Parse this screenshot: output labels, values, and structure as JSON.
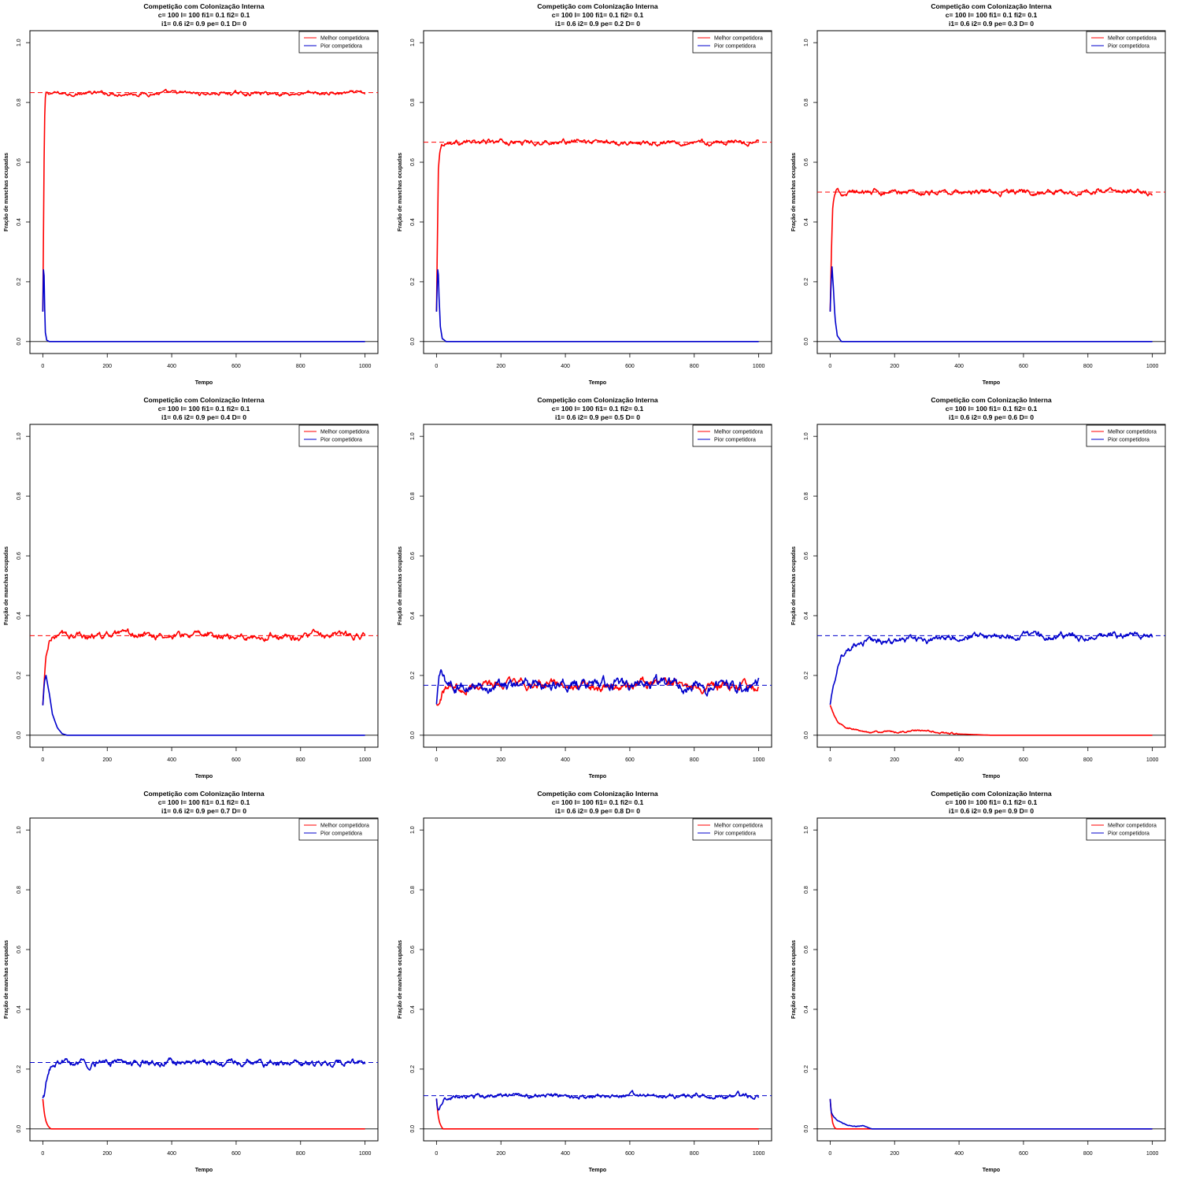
{
  "legend": {
    "better": "Melhor competidora",
    "worse": "Pior competidora"
  },
  "colors": {
    "better": "#ff0000",
    "worse": "#0000cc"
  },
  "chart_data": [
    {
      "type": "line",
      "title": [
        "Competição com Colonização Interna",
        "c= 100  l= 100  fi1= 0.1  fi2= 0.1",
        "i1= 0.6  i2= 0.9  pe= 0.1  D= 0"
      ],
      "xlabel": "Tempo",
      "ylabel": "Fração de manchas ocupadas",
      "xlim": [
        0,
        1000
      ],
      "ylim": [
        0,
        1
      ],
      "x_ticks": [
        0,
        200,
        400,
        600,
        800,
        1000
      ],
      "y_ticks": [
        0.0,
        0.2,
        0.4,
        0.6,
        0.8,
        1.0
      ],
      "legend_position": "top-right",
      "series": [
        {
          "name": "Melhor competidora",
          "color": "#ff0000",
          "x": [
            0,
            2,
            4,
            6,
            8,
            10,
            20,
            100,
            200,
            300,
            400,
            500,
            600,
            700,
            800,
            900,
            1000
          ],
          "y": [
            0.1,
            0.35,
            0.6,
            0.75,
            0.81,
            0.83,
            0.83,
            0.83,
            0.83,
            0.83,
            0.83,
            0.83,
            0.83,
            0.83,
            0.83,
            0.83,
            0.83
          ],
          "noise": 0.004,
          "equilibrium": 0.833
        },
        {
          "name": "Pior competidora",
          "color": "#0000cc",
          "x": [
            0,
            2,
            3,
            5,
            8,
            12,
            20,
            1000
          ],
          "y": [
            0.1,
            0.24,
            0.29,
            0.15,
            0.03,
            0.005,
            0.0,
            0.0
          ],
          "noise": 0,
          "equilibrium": null
        }
      ]
    },
    {
      "type": "line",
      "title": [
        "Competição com Colonização Interna",
        "c= 100  l= 100  fi1= 0.1  fi2= 0.1",
        "i1= 0.6  i2= 0.9  pe= 0.2  D= 0"
      ],
      "xlabel": "Tempo",
      "ylabel": "Fração de manchas ocupadas",
      "xlim": [
        0,
        1000
      ],
      "ylim": [
        0,
        1
      ],
      "x_ticks": [
        0,
        200,
        400,
        600,
        800,
        1000
      ],
      "y_ticks": [
        0.0,
        0.2,
        0.4,
        0.6,
        0.8,
        1.0
      ],
      "legend_position": "top-right",
      "series": [
        {
          "name": "Melhor competidora",
          "color": "#ff0000",
          "x": [
            0,
            3,
            6,
            10,
            15,
            25,
            100,
            200,
            300,
            400,
            500,
            600,
            700,
            800,
            900,
            1000
          ],
          "y": [
            0.1,
            0.35,
            0.58,
            0.64,
            0.66,
            0.667,
            0.667,
            0.667,
            0.667,
            0.667,
            0.667,
            0.667,
            0.667,
            0.667,
            0.667,
            0.667
          ],
          "noise": 0.005,
          "equilibrium": 0.667
        },
        {
          "name": "Pior competidora",
          "color": "#0000cc",
          "x": [
            0,
            3,
            5,
            8,
            12,
            18,
            30,
            1000
          ],
          "y": [
            0.1,
            0.22,
            0.26,
            0.15,
            0.05,
            0.01,
            0.0,
            0.0
          ],
          "noise": 0,
          "equilibrium": null
        }
      ]
    },
    {
      "type": "line",
      "title": [
        "Competição com Colonização Interna",
        "c= 100  l= 100  fi1= 0.1  fi2= 0.1",
        "i1= 0.6  i2= 0.9  pe= 0.3  D= 0"
      ],
      "xlabel": "Tempo",
      "ylabel": "Fração de manchas ocupadas",
      "xlim": [
        0,
        1000
      ],
      "ylim": [
        0,
        1
      ],
      "x_ticks": [
        0,
        200,
        400,
        600,
        800,
        1000
      ],
      "y_ticks": [
        0.0,
        0.2,
        0.4,
        0.6,
        0.8,
        1.0
      ],
      "legend_position": "top-right",
      "series": [
        {
          "name": "Melhor competidora",
          "color": "#ff0000",
          "x": [
            0,
            4,
            8,
            12,
            18,
            30,
            100,
            200,
            300,
            400,
            500,
            600,
            700,
            800,
            900,
            1000
          ],
          "y": [
            0.1,
            0.3,
            0.44,
            0.48,
            0.495,
            0.5,
            0.5,
            0.5,
            0.5,
            0.5,
            0.5,
            0.5,
            0.5,
            0.5,
            0.5,
            0.5
          ],
          "noise": 0.006,
          "equilibrium": 0.5
        },
        {
          "name": "Pior competidora",
          "color": "#0000cc",
          "x": [
            0,
            3,
            6,
            10,
            15,
            22,
            35,
            1000
          ],
          "y": [
            0.1,
            0.2,
            0.25,
            0.18,
            0.08,
            0.02,
            0.0,
            0.0
          ],
          "noise": 0,
          "equilibrium": null
        }
      ]
    },
    {
      "type": "line",
      "title": [
        "Competição com Colonização Interna",
        "c= 100  l= 100  fi1= 0.1  fi2= 0.1",
        "i1= 0.6  i2= 0.9  pe= 0.4  D= 0"
      ],
      "xlabel": "Tempo",
      "ylabel": "Fração de manchas ocupadas",
      "xlim": [
        0,
        1000
      ],
      "ylim": [
        0,
        1
      ],
      "x_ticks": [
        0,
        200,
        400,
        600,
        800,
        1000
      ],
      "y_ticks": [
        0.0,
        0.2,
        0.4,
        0.6,
        0.8,
        1.0
      ],
      "legend_position": "top-right",
      "series": [
        {
          "name": "Melhor competidora",
          "color": "#ff0000",
          "x": [
            0,
            5,
            10,
            20,
            30,
            50,
            100,
            200,
            300,
            400,
            500,
            600,
            700,
            800,
            900,
            1000
          ],
          "y": [
            0.1,
            0.19,
            0.26,
            0.31,
            0.325,
            0.333,
            0.333,
            0.333,
            0.333,
            0.333,
            0.333,
            0.333,
            0.333,
            0.333,
            0.333,
            0.333
          ],
          "noise": 0.007,
          "equilibrium": 0.333
        },
        {
          "name": "Pior competidora",
          "color": "#0000cc",
          "x": [
            0,
            5,
            10,
            20,
            30,
            45,
            60,
            75,
            1000
          ],
          "y": [
            0.1,
            0.18,
            0.2,
            0.14,
            0.07,
            0.025,
            0.005,
            0.0,
            0.0
          ],
          "noise": 0,
          "equilibrium": null
        }
      ]
    },
    {
      "type": "line",
      "title": [
        "Competição com Colonização Interna",
        "c= 100  l= 100  fi1= 0.1  fi2= 0.1",
        "i1= 0.6  i2= 0.9  pe= 0.5  D= 0"
      ],
      "xlabel": "Tempo",
      "ylabel": "Fração de manchas ocupadas",
      "xlim": [
        0,
        1000
      ],
      "ylim": [
        0,
        1
      ],
      "x_ticks": [
        0,
        200,
        400,
        600,
        800,
        1000
      ],
      "y_ticks": [
        0.0,
        0.2,
        0.4,
        0.6,
        0.8,
        1.0
      ],
      "legend_position": "top-right",
      "series": [
        {
          "name": "Melhor competidora",
          "color": "#ff0000",
          "x": [
            0,
            10,
            20,
            40,
            100,
            200,
            300,
            400,
            500,
            600,
            700,
            800,
            900,
            1000
          ],
          "y": [
            0.1,
            0.13,
            0.15,
            0.165,
            0.167,
            0.167,
            0.167,
            0.167,
            0.167,
            0.167,
            0.167,
            0.167,
            0.167,
            0.167
          ],
          "noise": 0.01,
          "equilibrium": null
        },
        {
          "name": "Pior competidora",
          "color": "#0000cc",
          "x": [
            0,
            8,
            15,
            25,
            40,
            100,
            200,
            300,
            400,
            500,
            600,
            700,
            800,
            900,
            1000
          ],
          "y": [
            0.1,
            0.18,
            0.21,
            0.18,
            0.165,
            0.167,
            0.167,
            0.167,
            0.167,
            0.167,
            0.167,
            0.167,
            0.167,
            0.167,
            0.167
          ],
          "noise": 0.012,
          "equilibrium": 0.167
        }
      ]
    },
    {
      "type": "line",
      "title": [
        "Competição com Colonização Interna",
        "c= 100  l= 100  fi1= 0.1  fi2= 0.1",
        "i1= 0.6  i2= 0.9  pe= 0.6  D= 0"
      ],
      "xlabel": "Tempo",
      "ylabel": "Fração de manchas ocupadas",
      "xlim": [
        0,
        1000
      ],
      "ylim": [
        0,
        1
      ],
      "x_ticks": [
        0,
        200,
        400,
        600,
        800,
        1000
      ],
      "y_ticks": [
        0.0,
        0.2,
        0.4,
        0.6,
        0.8,
        1.0
      ],
      "legend_position": "top-right",
      "series": [
        {
          "name": "Melhor competidora",
          "color": "#ff0000",
          "x": [
            0,
            10,
            25,
            50,
            100,
            200,
            280,
            350,
            400,
            450,
            500,
            1000
          ],
          "y": [
            0.1,
            0.07,
            0.04,
            0.025,
            0.012,
            0.01,
            0.015,
            0.008,
            0.004,
            0.002,
            0.0,
            0.0
          ],
          "noise": 0.002,
          "equilibrium": null
        },
        {
          "name": "Pior competidora",
          "color": "#0000cc",
          "x": [
            0,
            10,
            25,
            50,
            100,
            200,
            300,
            400,
            450,
            500,
            600,
            700,
            800,
            900,
            1000
          ],
          "y": [
            0.1,
            0.18,
            0.25,
            0.29,
            0.31,
            0.315,
            0.315,
            0.325,
            0.333,
            0.333,
            0.333,
            0.333,
            0.333,
            0.333,
            0.333
          ],
          "noise": 0.007,
          "equilibrium": 0.333
        }
      ]
    },
    {
      "type": "line",
      "title": [
        "Competição com Colonização Interna",
        "c= 100  l= 100  fi1= 0.1  fi2= 0.1",
        "i1= 0.6  i2= 0.9  pe= 0.7  D= 0"
      ],
      "xlabel": "Tempo",
      "ylabel": "Fração de manchas ocupadas",
      "xlim": [
        0,
        1000
      ],
      "ylim": [
        0,
        1
      ],
      "x_ticks": [
        0,
        200,
        400,
        600,
        800,
        1000
      ],
      "y_ticks": [
        0.0,
        0.2,
        0.4,
        0.6,
        0.8,
        1.0
      ],
      "legend_position": "top-right",
      "series": [
        {
          "name": "Melhor competidora",
          "color": "#ff0000",
          "x": [
            0,
            5,
            10,
            15,
            20,
            25,
            1000
          ],
          "y": [
            0.1,
            0.05,
            0.025,
            0.012,
            0.005,
            0.0,
            0.0
          ],
          "noise": 0,
          "equilibrium": null
        },
        {
          "name": "Pior competidora",
          "color": "#0000cc",
          "x": [
            0,
            5,
            10,
            20,
            30,
            45,
            100,
            200,
            300,
            400,
            500,
            600,
            700,
            800,
            900,
            1000
          ],
          "y": [
            0.1,
            0.11,
            0.15,
            0.19,
            0.21,
            0.22,
            0.222,
            0.222,
            0.222,
            0.222,
            0.222,
            0.222,
            0.222,
            0.222,
            0.222,
            0.222
          ],
          "noise": 0.007,
          "equilibrium": 0.222
        }
      ]
    },
    {
      "type": "line",
      "title": [
        "Competição com Colonização Interna",
        "c= 100  l= 100  fi1= 0.1  fi2= 0.1",
        "i1= 0.6  i2= 0.9  pe= 0.8  D= 0"
      ],
      "xlabel": "Tempo",
      "ylabel": "Fração de manchas ocupadas",
      "xlim": [
        0,
        1000
      ],
      "ylim": [
        0,
        1
      ],
      "x_ticks": [
        0,
        200,
        400,
        600,
        800,
        1000
      ],
      "y_ticks": [
        0.0,
        0.2,
        0.4,
        0.6,
        0.8,
        1.0
      ],
      "legend_position": "top-right",
      "series": [
        {
          "name": "Melhor competidora",
          "color": "#ff0000",
          "x": [
            0,
            5,
            10,
            15,
            20,
            1000
          ],
          "y": [
            0.1,
            0.045,
            0.02,
            0.008,
            0.0,
            0.0
          ],
          "noise": 0,
          "equilibrium": null
        },
        {
          "name": "Pior competidora",
          "color": "#0000cc",
          "x": [
            0,
            3,
            8,
            15,
            25,
            50,
            100,
            200,
            300,
            400,
            500,
            600,
            700,
            800,
            900,
            1000
          ],
          "y": [
            0.1,
            0.065,
            0.06,
            0.08,
            0.1,
            0.108,
            0.111,
            0.111,
            0.111,
            0.111,
            0.111,
            0.111,
            0.111,
            0.111,
            0.111,
            0.111
          ],
          "noise": 0.005,
          "equilibrium": 0.111
        }
      ]
    },
    {
      "type": "line",
      "title": [
        "Competição com Colonização Interna",
        "c= 100  l= 100  fi1= 0.1  fi2= 0.1",
        "i1= 0.6  i2= 0.9  pe= 0.9  D= 0"
      ],
      "xlabel": "Tempo",
      "ylabel": "Fração de manchas ocupadas",
      "xlim": [
        0,
        1000
      ],
      "ylim": [
        0,
        1
      ],
      "x_ticks": [
        0,
        200,
        400,
        600,
        800,
        1000
      ],
      "y_ticks": [
        0.0,
        0.2,
        0.4,
        0.6,
        0.8,
        1.0
      ],
      "legend_position": "top-right",
      "series": [
        {
          "name": "Melhor competidora",
          "color": "#ff0000",
          "x": [
            0,
            4,
            8,
            12,
            16,
            20,
            1000
          ],
          "y": [
            0.1,
            0.05,
            0.02,
            0.008,
            0.002,
            0.0,
            0.0
          ],
          "noise": 0,
          "equilibrium": null
        },
        {
          "name": "Pior competidora",
          "color": "#0000cc",
          "x": [
            0,
            3,
            8,
            20,
            40,
            60,
            80,
            100,
            115,
            130,
            1000
          ],
          "y": [
            0.1,
            0.055,
            0.045,
            0.03,
            0.018,
            0.012,
            0.008,
            0.01,
            0.005,
            0.0,
            0.0
          ],
          "noise": 0.001,
          "equilibrium": null
        }
      ]
    }
  ]
}
